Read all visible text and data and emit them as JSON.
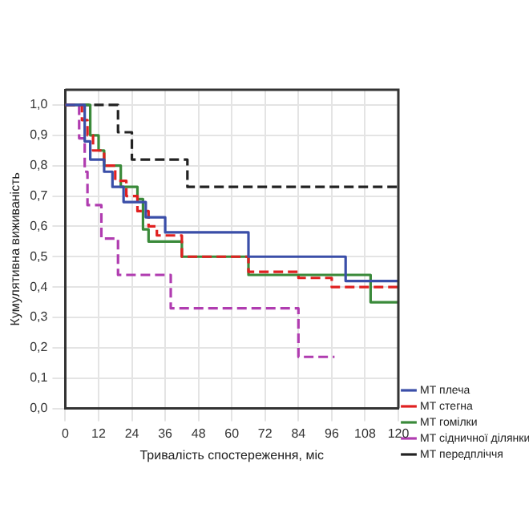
{
  "chart_data": {
    "type": "step",
    "xlabel": "Тривалість спостереження, міс",
    "ylabel": "Кумулятивна виживаність",
    "xlim": [
      0,
      120
    ],
    "xticks": [
      0,
      12,
      24,
      36,
      48,
      60,
      72,
      84,
      96,
      108,
      120
    ],
    "ylim": [
      0,
      1.05
    ],
    "yticks": [
      {
        "value": 0,
        "label": "0,0"
      },
      {
        "value": 0.1,
        "label": "0,1"
      },
      {
        "value": 0.2,
        "label": "0,2"
      },
      {
        "value": 0.3,
        "label": "0,3"
      },
      {
        "value": 0.4,
        "label": "0,4"
      },
      {
        "value": 0.5,
        "label": "0,5"
      },
      {
        "value": 0.6,
        "label": "0,6"
      },
      {
        "value": 0.7,
        "label": "0,7"
      },
      {
        "value": 0.8,
        "label": "0,8"
      },
      {
        "value": 0.9,
        "label": "0,9"
      },
      {
        "value": 1,
        "label": "1,0"
      }
    ],
    "grid": true,
    "legend": "bottom right",
    "series": [
      {
        "name": "МТ плеча",
        "color": "#3a4ea8",
        "line_style": "solid",
        "x": [
          0,
          7,
          9,
          14,
          17,
          21,
          29,
          36,
          66,
          101,
          120
        ],
        "values": [
          1.0,
          0.88,
          0.82,
          0.78,
          0.73,
          0.68,
          0.63,
          0.58,
          0.5,
          0.42,
          0.42
        ]
      },
      {
        "name": "МТ стегна",
        "color": "#e02020",
        "line_style": "dashed",
        "x": [
          0,
          6,
          8,
          10,
          14,
          18,
          22,
          26,
          30,
          33,
          42,
          66,
          84,
          96,
          120
        ],
        "values": [
          1.0,
          0.95,
          0.9,
          0.85,
          0.8,
          0.75,
          0.7,
          0.65,
          0.6,
          0.57,
          0.5,
          0.45,
          0.43,
          0.4,
          0.4
        ]
      },
      {
        "name": "МТ гомілки",
        "color": "#3a8a3a",
        "line_style": "solid",
        "x": [
          0,
          9,
          12,
          14,
          20,
          26,
          28,
          30,
          42,
          66,
          110,
          120
        ],
        "values": [
          1.0,
          0.9,
          0.85,
          0.8,
          0.73,
          0.69,
          0.59,
          0.55,
          0.5,
          0.44,
          0.35,
          0.35
        ]
      },
      {
        "name": "МТ сідничної ділянки",
        "color": "#b03cb0",
        "line_style": "dashed",
        "x": [
          0,
          5,
          7,
          8,
          13,
          19,
          38,
          84,
          97
        ],
        "values": [
          1.0,
          0.89,
          0.78,
          0.67,
          0.56,
          0.44,
          0.33,
          0.17,
          0.17
        ]
      },
      {
        "name": "МТ передпліччя",
        "color": "#222222",
        "line_style": "dashed",
        "x": [
          0,
          19,
          24,
          44,
          120
        ],
        "values": [
          1.0,
          0.91,
          0.82,
          0.73,
          0.73
        ]
      }
    ]
  }
}
